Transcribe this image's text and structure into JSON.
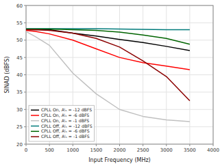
{
  "chart_data": {
    "type": "line",
    "xlabel": "Input Frequency (MHz)",
    "ylabel": "SINAD (dBFS)",
    "x": [
      0,
      200,
      500,
      1000,
      1500,
      2000,
      2500,
      3000,
      3500
    ],
    "series": [
      {
        "name": "CPLL On, Aᴵₙ = -12 dBFS",
        "color": "#000000",
        "values": [
          53.0,
          53.0,
          53.0,
          52.0,
          51.2,
          50.2,
          49.3,
          48.2,
          47.0
        ]
      },
      {
        "name": "CPLL On, Aᴵₙ = -6 dBFS",
        "color": "#ff0000",
        "values": [
          52.8,
          52.5,
          51.8,
          50.0,
          47.5,
          45.0,
          43.5,
          42.5,
          41.5
        ]
      },
      {
        "name": "CPLL On, Aᴵₙ = -1 dBFS",
        "color": "#c0c0c0",
        "values": [
          52.5,
          51.0,
          48.5,
          40.5,
          34.5,
          30.0,
          28.0,
          27.0,
          26.5
        ]
      },
      {
        "name": "CPLL Off, Aᴵₙ = -12 dBFS",
        "color": "#007b7b",
        "values": [
          53.3,
          53.3,
          53.3,
          53.3,
          53.3,
          53.2,
          53.1,
          53.0,
          53.0
        ]
      },
      {
        "name": "CPLL Off, Aᴵₙ = -6 dBFS",
        "color": "#006400",
        "values": [
          53.2,
          53.2,
          53.2,
          53.0,
          52.8,
          52.3,
          51.5,
          50.5,
          48.8
        ]
      },
      {
        "name": "CPLL Off, Aᴵₙ = -1 dBFS",
        "color": "#8b0000",
        "values": [
          53.0,
          53.0,
          52.8,
          52.0,
          50.5,
          48.0,
          44.0,
          39.5,
          32.5
        ]
      }
    ],
    "xlim": [
      0,
      4000
    ],
    "ylim": [
      20,
      60
    ],
    "xticks": [
      0,
      500,
      1000,
      1500,
      2000,
      2500,
      3000,
      3500,
      4000
    ],
    "yticks": [
      20,
      25,
      30,
      35,
      40,
      45,
      50,
      55,
      60
    ],
    "grid": true,
    "legend": "lower left"
  }
}
